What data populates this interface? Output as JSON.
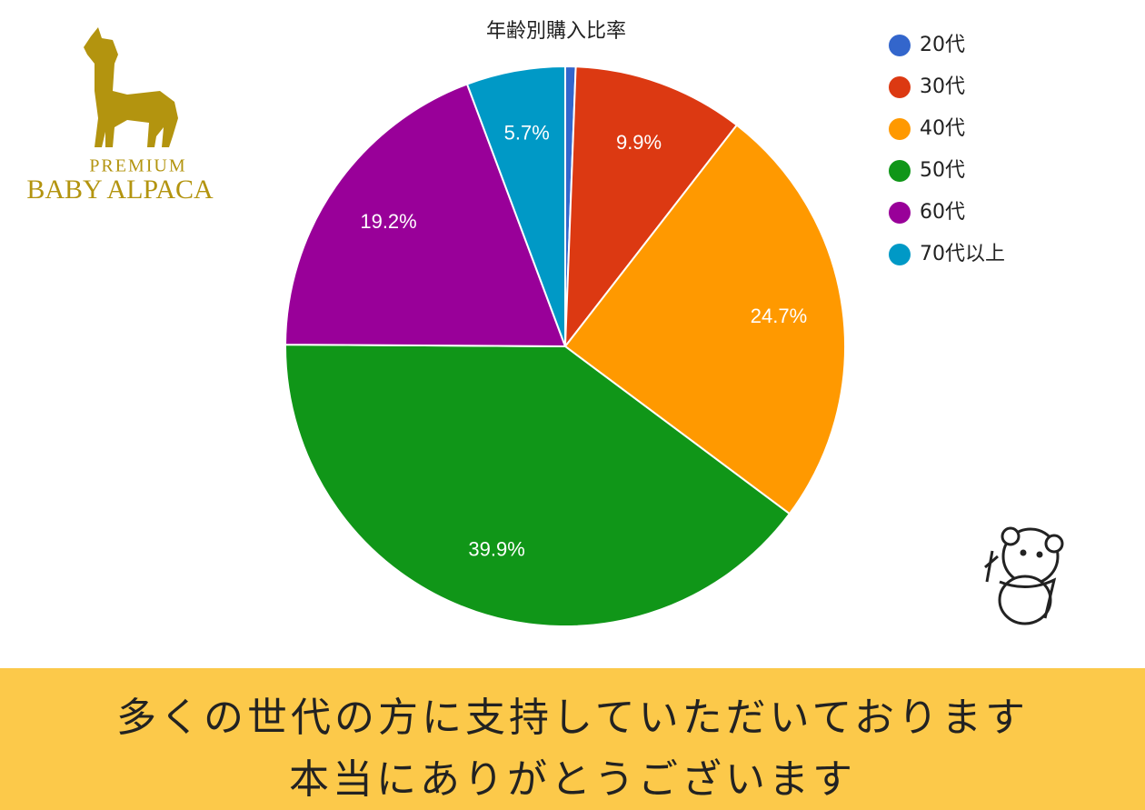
{
  "logo": {
    "line1": "PREMIUM",
    "line2": "BABY ALPACA"
  },
  "chart_data": {
    "type": "pie",
    "title": "年齢別購入比率",
    "categories": [
      "20代",
      "30代",
      "40代",
      "50代",
      "60代",
      "70代以上"
    ],
    "values": [
      0.6,
      9.9,
      24.7,
      39.9,
      19.2,
      5.7
    ],
    "value_labels": [
      null,
      "9.9%",
      "24.7%",
      "39.9%",
      "19.2%",
      "5.7%"
    ],
    "colors": [
      "#3366cc",
      "#dc3912",
      "#ff9900",
      "#109618",
      "#990099",
      "#0099c6"
    ],
    "legend": "right"
  },
  "banner": {
    "lines": [
      "多くの世代の方に支持していただいております",
      "本当にありがとうございます"
    ]
  }
}
